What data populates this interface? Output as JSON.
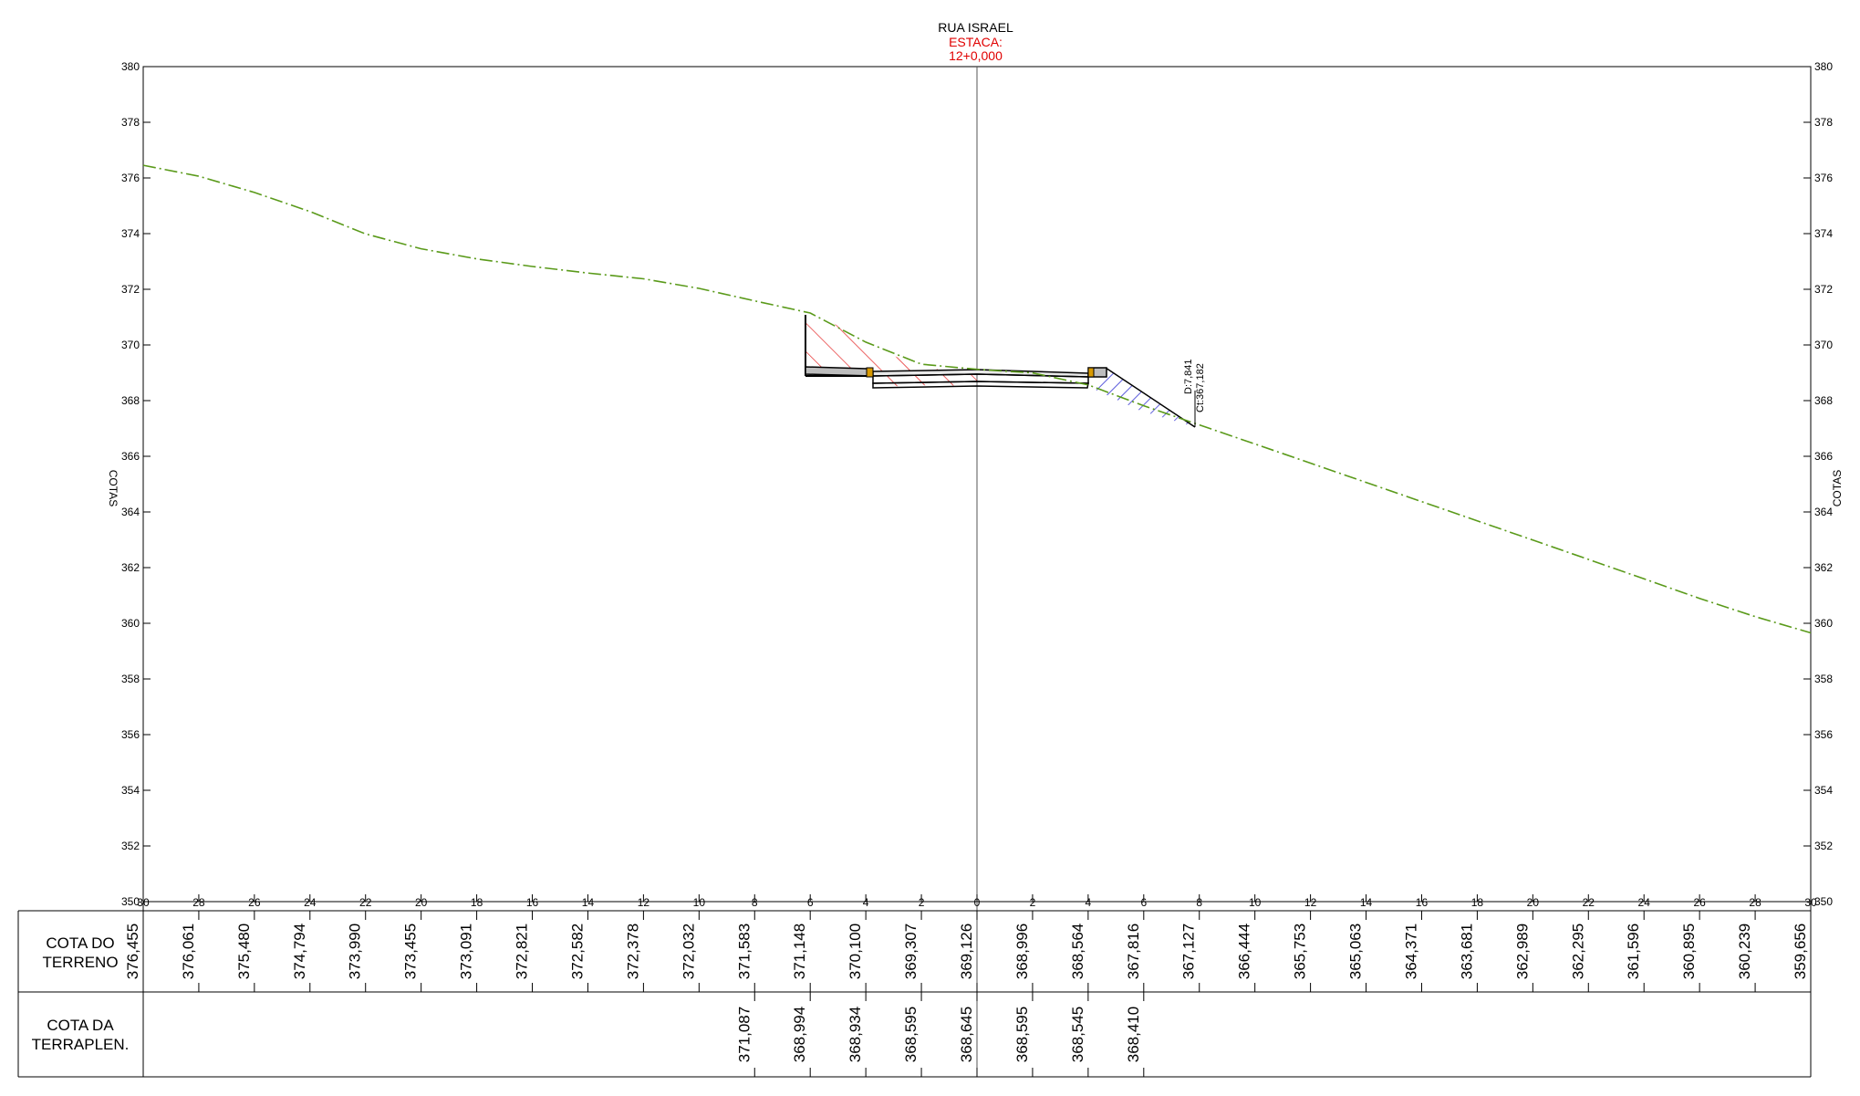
{
  "header": {
    "title": "RUA  ISRAEL",
    "estaca_label": "ESTACA:",
    "station": "12+0,000"
  },
  "axis": {
    "label_left": "COTAS",
    "label_right": "COTAS",
    "y_ticks": [
      380,
      378,
      376,
      374,
      372,
      370,
      368,
      366,
      364,
      362,
      360,
      358,
      356,
      354,
      352,
      350
    ],
    "x_ticks": [
      "30",
      "28",
      "26",
      "24",
      "22",
      "20",
      "18",
      "16",
      "14",
      "12",
      "10",
      "8",
      "6",
      "4",
      "2",
      "0",
      "2",
      "4",
      "6",
      "8",
      "10",
      "12",
      "14",
      "16",
      "18",
      "20",
      "22",
      "24",
      "26",
      "28",
      "30"
    ],
    "ylim": [
      350,
      380
    ],
    "xlim": [
      -30,
      30
    ]
  },
  "table": {
    "row1_label_1": "COTA  DO",
    "row1_label_2": "TERRENO",
    "row2_label_1": "COTA  DA",
    "row2_label_2": "TERRAPLEN."
  },
  "annotation": {
    "offset": "D:7,841",
    "elevation": "Ct:367,182"
  },
  "colors": {
    "terrain": "#5a9a1a",
    "cut_hatch": "#e00000",
    "fill_hatch": "#0000c8",
    "title_red": "#e00000",
    "curb": "#d89a00"
  },
  "chart_data": {
    "type": "line",
    "xlabel": "",
    "ylabel": "COTAS",
    "terrain": {
      "x": [
        -30,
        -28,
        -26,
        -24,
        -22,
        -20,
        -18,
        -16,
        -14,
        -12,
        -10,
        -8,
        -6,
        -4,
        -2,
        0,
        2,
        4,
        6,
        8,
        10,
        12,
        14,
        16,
        18,
        20,
        22,
        24,
        26,
        28,
        30
      ],
      "labels": [
        "376,455",
        "376,061",
        "375,480",
        "374,794",
        "373,990",
        "373,455",
        "373,091",
        "372,821",
        "372,582",
        "372,378",
        "372,032",
        "371,583",
        "371,148",
        "370,100",
        "369,307",
        "369,126",
        "368,996",
        "368,564",
        "367,816",
        "367,127",
        "366,444",
        "365,753",
        "365,063",
        "364,371",
        "363,681",
        "362,989",
        "362,295",
        "361,596",
        "360,895",
        "360,239",
        "359,656"
      ]
    },
    "terrapleno": {
      "x": [
        -8,
        -6,
        -4,
        -2,
        0,
        2,
        4,
        6
      ],
      "labels": [
        "371,087",
        "368,994",
        "368,934",
        "368,595",
        "368,645",
        "368,595",
        "368,545",
        "368,410"
      ]
    }
  }
}
